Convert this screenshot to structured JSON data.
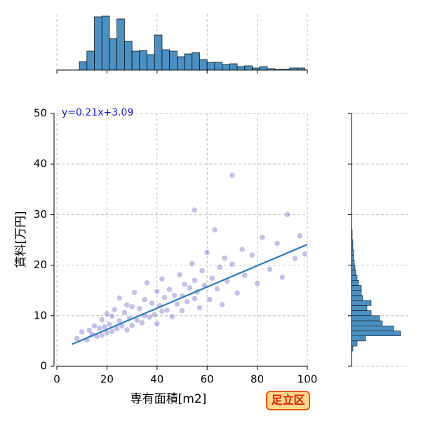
{
  "chart_data": {
    "type": "scatter",
    "xlabel": "専有面積[m2]",
    "ylabel": "賃料[万円]",
    "badge": "足立区",
    "xlim": [
      0,
      100
    ],
    "ylim": [
      0,
      50
    ],
    "xticks": [
      0,
      20,
      40,
      60,
      80,
      100
    ],
    "yticks": [
      0,
      10,
      20,
      30,
      40,
      50
    ],
    "grid": true,
    "color": "#3b2fc0",
    "line_color": "#2a7bc4",
    "hist_color": "#4a90c2",
    "x": [
      8,
      10,
      12,
      13,
      14,
      15,
      16,
      17,
      18,
      18,
      19,
      20,
      20,
      21,
      22,
      22,
      23,
      24,
      25,
      25,
      26,
      27,
      28,
      28,
      29,
      30,
      30,
      31,
      32,
      33,
      34,
      35,
      35,
      36,
      37,
      38,
      39,
      40,
      40,
      41,
      42,
      42,
      43,
      44,
      45,
      46,
      47,
      48,
      49,
      50,
      50,
      51,
      52,
      53,
      54,
      55,
      55,
      56,
      57,
      58,
      59,
      60,
      61,
      62,
      63,
      64,
      65,
      66,
      67,
      68,
      70,
      72,
      74,
      75,
      78,
      80,
      82,
      85,
      88,
      90,
      92,
      95,
      97,
      99,
      55,
      70
    ],
    "y": [
      5.5,
      6.8,
      5.2,
      7.1,
      6.3,
      8.0,
      5.9,
      7.5,
      9.2,
      6.1,
      7.8,
      10.4,
      6.6,
      8.3,
      9.9,
      6.9,
      11.2,
      7.4,
      9.0,
      13.5,
      8.0,
      10.6,
      7.2,
      12.1,
      9.5,
      11.8,
      8.1,
      14.6,
      9.1,
      11.4,
      8.6,
      13.2,
      10.0,
      16.5,
      9.7,
      12.5,
      10.2,
      14.8,
      8.4,
      12.0,
      17.3,
      10.9,
      13.6,
      11.1,
      15.2,
      9.8,
      14.0,
      12.3,
      18.1,
      13.9,
      11.0,
      16.2,
      12.8,
      15.5,
      20.3,
      13.4,
      17.0,
      14.7,
      11.6,
      18.9,
      16.0,
      22.5,
      13.2,
      17.4,
      27.0,
      15.3,
      19.6,
      12.2,
      21.4,
      16.8,
      20.2,
      14.5,
      23.1,
      18.0,
      22.0,
      16.4,
      25.5,
      19.2,
      24.3,
      17.6,
      30.0,
      21.3,
      25.8,
      22.2,
      30.9,
      37.8
    ],
    "fit": {
      "label": "y=0.21x+3.09",
      "slope": 0.21,
      "intercept": 3.09,
      "xrange": [
        6,
        100
      ]
    },
    "top_hist": {
      "bins": [
        9,
        12,
        15,
        18,
        21,
        24,
        27,
        30,
        33,
        36,
        39,
        42,
        45,
        48,
        51,
        54,
        57,
        60,
        63,
        66,
        69,
        72,
        75,
        78,
        81,
        84,
        87,
        90,
        93,
        96,
        99
      ],
      "counts": [
        12,
        27,
        76,
        77,
        45,
        73,
        41,
        27,
        28,
        22,
        50,
        29,
        27,
        19,
        23,
        25,
        15,
        11,
        11,
        8,
        9,
        5,
        6,
        3,
        5,
        2,
        1,
        1,
        3,
        3
      ],
      "ylim": [
        0,
        80
      ]
    },
    "right_hist": {
      "bins": [
        3,
        4,
        5,
        6,
        7,
        8,
        9,
        10,
        11,
        12,
        13,
        14,
        15,
        16,
        17,
        18,
        19,
        20,
        21,
        22,
        23,
        24,
        25,
        26,
        27
      ],
      "counts": [
        2,
        8,
        20,
        70,
        60,
        44,
        40,
        28,
        22,
        28,
        16,
        14,
        14,
        10,
        8,
        6,
        5,
        4,
        3,
        3,
        2,
        2,
        1,
        1
      ],
      "xlim": [
        0,
        80
      ]
    }
  }
}
